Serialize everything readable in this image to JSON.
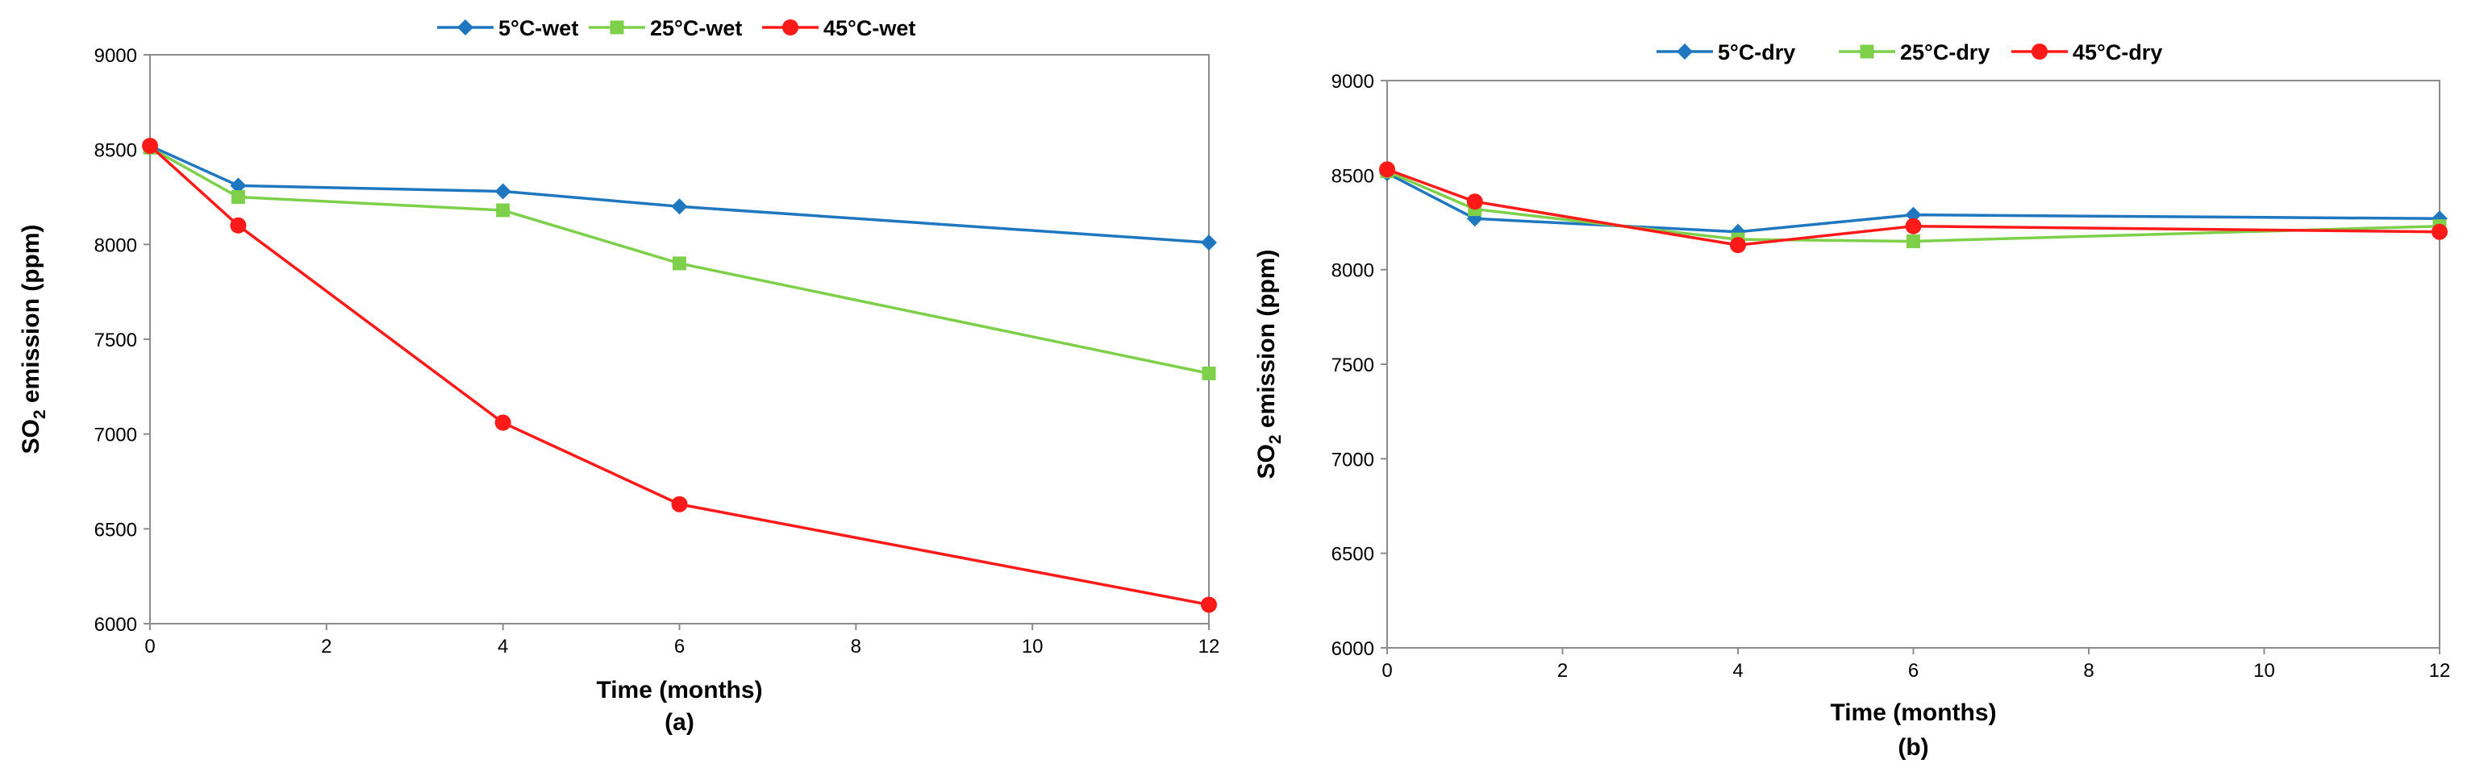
{
  "chart_data": [
    {
      "type": "line",
      "panel_label": "(a)",
      "xlabel": "Time (months)",
      "ylabel_main": "SO",
      "ylabel_sub": "2",
      "ylabel_rest": " emission (ppm)",
      "xlim": [
        0,
        12
      ],
      "ylim": [
        6000,
        9000
      ],
      "xticks": [
        "0",
        "2",
        "4",
        "6",
        "8",
        "10",
        "12"
      ],
      "yticks": [
        "6000",
        "6500",
        "7000",
        "7500",
        "8000",
        "8500",
        "9000"
      ],
      "grid": false,
      "legend_position": "top",
      "series": [
        {
          "name": "5°C-wet",
          "color": "#1f77c0",
          "marker": "diamond",
          "x": [
            0,
            1,
            4,
            6,
            12
          ],
          "y": [
            8520,
            8310,
            8280,
            8200,
            8010
          ]
        },
        {
          "name": "25°C-wet",
          "color": "#7ed04b",
          "marker": "square",
          "x": [
            0,
            1,
            4,
            6,
            12
          ],
          "y": [
            8510,
            8250,
            8180,
            7900,
            7320
          ]
        },
        {
          "name": "45°C-wet",
          "color": "#ff1a1a",
          "marker": "circle",
          "x": [
            0,
            1,
            4,
            6,
            12
          ],
          "y": [
            8520,
            8100,
            7060,
            6630,
            6100
          ]
        }
      ]
    },
    {
      "type": "line",
      "panel_label": "(b)",
      "xlabel": "Time (months)",
      "ylabel_main": "SO",
      "ylabel_sub": "2",
      "ylabel_rest": " emission (ppm)",
      "xlim": [
        0,
        12
      ],
      "ylim": [
        6000,
        9000
      ],
      "xticks": [
        "0",
        "2",
        "4",
        "6",
        "8",
        "10",
        "12"
      ],
      "yticks": [
        "6000",
        "6500",
        "7000",
        "7500",
        "8000",
        "8500",
        "9000"
      ],
      "grid": false,
      "legend_position": "top",
      "series": [
        {
          "name": "5°C-dry",
          "color": "#1f77c0",
          "marker": "diamond",
          "x": [
            0,
            1,
            4,
            6,
            12
          ],
          "y": [
            8510,
            8270,
            8200,
            8290,
            8270
          ]
        },
        {
          "name": "25°C-dry",
          "color": "#7ed04b",
          "marker": "square",
          "x": [
            0,
            1,
            4,
            6,
            12
          ],
          "y": [
            8520,
            8320,
            8160,
            8150,
            8230
          ]
        },
        {
          "name": "45°C-dry",
          "color": "#ff1a1a",
          "marker": "circle",
          "x": [
            0,
            1,
            4,
            6,
            12
          ],
          "y": [
            8530,
            8360,
            8130,
            8230,
            8200
          ]
        }
      ]
    }
  ]
}
